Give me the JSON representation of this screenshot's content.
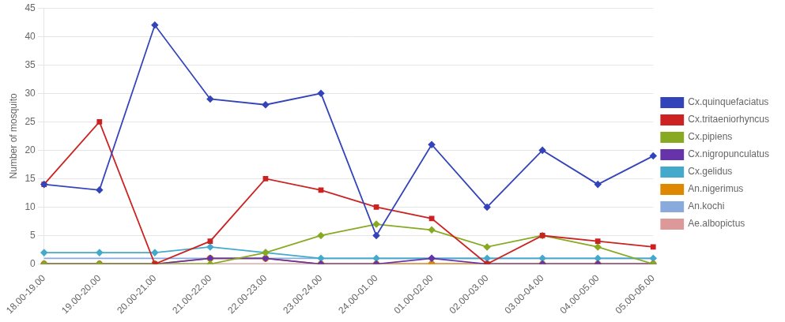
{
  "chart_data": {
    "type": "line",
    "categories": [
      "18.00-19.00",
      "19.00-20.00",
      "20.00-21.00",
      "21.00-22.00",
      "22.00-23.00",
      "23.00-24.00",
      "24.00-01.00",
      "01.00-02.00",
      "02.00-03.00",
      "03.00-04.00",
      "04.00-05.00",
      "05.00-06.00"
    ],
    "series": [
      {
        "name": "Cx.quinquefaciatus",
        "color": "#3344bb",
        "marker": "diamond",
        "line_style": "solid",
        "values": [
          14,
          13,
          42,
          29,
          28,
          30,
          5,
          21,
          10,
          20,
          14,
          19
        ]
      },
      {
        "name": "Cx.tritaeniorhyncus",
        "color": "#cc2222",
        "marker": "square",
        "line_style": "solid",
        "values": [
          14,
          25,
          0,
          4,
          15,
          13,
          10,
          8,
          0,
          5,
          4,
          3
        ]
      },
      {
        "name": "Cx.pipiens",
        "color": "#88aa22",
        "marker": "diamond",
        "line_style": "solid",
        "values": [
          0,
          0,
          0,
          0,
          2,
          5,
          7,
          6,
          3,
          5,
          3,
          0
        ]
      },
      {
        "name": "Cx.nigropunculatus",
        "color": "#6633aa",
        "marker": "diamond",
        "line_style": "solid",
        "values": [
          0,
          0,
          0,
          1,
          1,
          0,
          0,
          1,
          0,
          0,
          0,
          0
        ]
      },
      {
        "name": "Cx.gelidus",
        "color": "#44aacc",
        "marker": "diamond",
        "line_style": "solid",
        "values": [
          2,
          2,
          2,
          3,
          2,
          1,
          1,
          1,
          1,
          1,
          1,
          1
        ]
      },
      {
        "name": "An.nigerimus",
        "color": "#dd8800",
        "marker": "circle",
        "line_style": "solid",
        "values": [
          0,
          0,
          0,
          1,
          1,
          0,
          0,
          0,
          0,
          0,
          0,
          0
        ]
      },
      {
        "name": "An.kochi",
        "color": "#88aadd",
        "marker": "none",
        "line_style": "solid",
        "values": [
          1,
          1,
          1,
          1,
          1,
          1,
          1,
          1,
          1,
          1,
          1,
          1
        ]
      },
      {
        "name": "Ae.albopictus",
        "color": "#dd9999",
        "marker": "none",
        "line_style": "solid",
        "values": [
          0,
          0,
          0,
          0,
          0,
          0,
          0,
          0,
          0,
          0,
          0,
          0
        ]
      }
    ],
    "y_label": "Number of mosquito",
    "ylim": [
      0,
      45
    ],
    "yticks": [
      0,
      5,
      10,
      15,
      20,
      25,
      30,
      35,
      40,
      45
    ],
    "grid": true,
    "legend": "right"
  }
}
